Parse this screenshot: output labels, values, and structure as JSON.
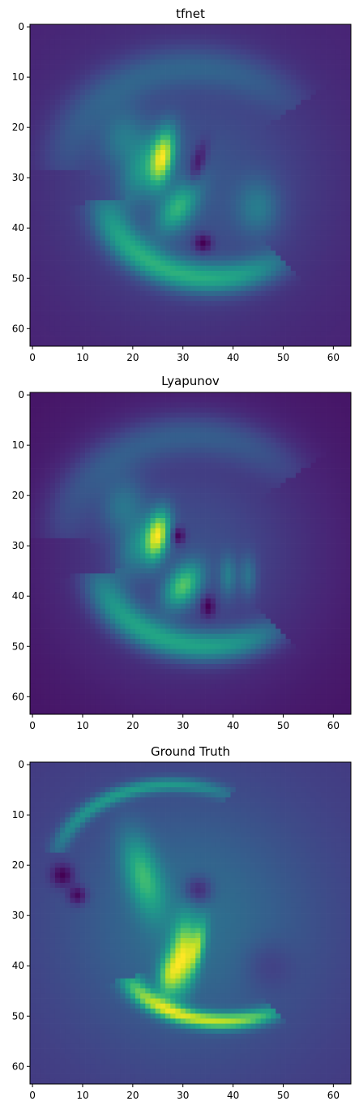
{
  "chart_data": [
    {
      "type": "heatmap",
      "title": "tfnet",
      "xticks": [
        0,
        10,
        20,
        30,
        40,
        50,
        60
      ],
      "yticks": [
        0,
        10,
        20,
        30,
        40,
        50,
        60
      ],
      "xlim": [
        -0.5,
        63.5
      ],
      "ylim": [
        63.5,
        -0.5
      ],
      "grid": false,
      "colormap": "viridis",
      "features": [
        {
          "x": 26,
          "y": 26,
          "sx": 1.6,
          "sy": 4.0,
          "rot": 0.2,
          "amp": 0.8
        },
        {
          "x": 22,
          "y": 28,
          "sx": 2.5,
          "sy": 5.0,
          "rot": 0.4,
          "amp": 0.35
        },
        {
          "x": 29,
          "y": 36,
          "sx": 2.2,
          "sy": 4.0,
          "rot": 0.6,
          "amp": 0.5
        },
        {
          "x": 18,
          "y": 22,
          "sx": 3.0,
          "sy": 4.0,
          "rot": 0.3,
          "amp": 0.25
        },
        {
          "x": 45,
          "y": 36,
          "sx": 3.0,
          "sy": 4.0,
          "rot": 0.0,
          "amp": 0.25
        },
        {
          "x": 34,
          "y": 43,
          "sx": 1.3,
          "sy": 1.3,
          "rot": 0.0,
          "amp": -0.3
        },
        {
          "x": 33,
          "y": 27,
          "sx": 1.0,
          "sy": 3.0,
          "rot": 0.3,
          "amp": -0.25
        }
      ],
      "arc": {
        "cx": 36,
        "cy": 32,
        "rx": 22,
        "ry": 18,
        "start": 0.9,
        "end": 3.0,
        "width": 2.2,
        "amp": 0.55
      },
      "outer_arc": {
        "cx": 32,
        "cy": 30,
        "rx": 26,
        "ry": 22,
        "start": 3.2,
        "end": 5.6,
        "width": 3.0,
        "amp": 0.2
      },
      "background": 0.18
    },
    {
      "type": "heatmap",
      "title": "Lyapunov",
      "xticks": [
        0,
        10,
        20,
        30,
        40,
        50,
        60
      ],
      "yticks": [
        0,
        10,
        20,
        30,
        40,
        50,
        60
      ],
      "xlim": [
        -0.5,
        63.5
      ],
      "ylim": [
        63.5,
        -0.5
      ],
      "grid": false,
      "colormap": "viridis",
      "features": [
        {
          "x": 25,
          "y": 28,
          "sx": 1.6,
          "sy": 3.5,
          "rot": 0.2,
          "amp": 0.8
        },
        {
          "x": 30,
          "y": 38,
          "sx": 2.2,
          "sy": 3.5,
          "rot": 0.6,
          "amp": 0.6
        },
        {
          "x": 21,
          "y": 30,
          "sx": 2.5,
          "sy": 4.5,
          "rot": 0.4,
          "amp": 0.3
        },
        {
          "x": 18,
          "y": 22,
          "sx": 3.0,
          "sy": 4.0,
          "rot": 0.3,
          "amp": 0.25
        },
        {
          "x": 39,
          "y": 36,
          "sx": 1.2,
          "sy": 3.0,
          "rot": 0.0,
          "amp": 0.25
        },
        {
          "x": 43,
          "y": 36,
          "sx": 1.2,
          "sy": 3.0,
          "rot": 0.0,
          "amp": 0.22
        },
        {
          "x": 29,
          "y": 28,
          "sx": 1.0,
          "sy": 1.2,
          "rot": 0.0,
          "amp": -0.3
        },
        {
          "x": 35,
          "y": 42,
          "sx": 1.0,
          "sy": 1.5,
          "rot": 0.0,
          "amp": -0.25
        }
      ],
      "arc": {
        "cx": 35,
        "cy": 33,
        "rx": 22,
        "ry": 17,
        "start": 0.9,
        "end": 3.0,
        "width": 2.2,
        "amp": 0.5
      },
      "outer_arc": {
        "cx": 32,
        "cy": 30,
        "rx": 26,
        "ry": 22,
        "start": 3.2,
        "end": 5.6,
        "width": 3.0,
        "amp": 0.2
      },
      "background": 0.18
    },
    {
      "type": "heatmap",
      "title": "Ground Truth",
      "xticks": [
        0,
        10,
        20,
        30,
        40,
        50,
        60
      ],
      "yticks": [
        0,
        10,
        20,
        30,
        40,
        50,
        60
      ],
      "xlim": [
        -0.5,
        63.5
      ],
      "ylim": [
        63.5,
        -0.5
      ],
      "grid": false,
      "colormap": "viridis",
      "features": [
        {
          "x": 30,
          "y": 38,
          "sx": 1.8,
          "sy": 5.0,
          "rot": 0.1,
          "amp": 0.65
        },
        {
          "x": 27,
          "y": 42,
          "sx": 1.5,
          "sy": 3.0,
          "rot": 0.1,
          "amp": 0.45
        },
        {
          "x": 22,
          "y": 22,
          "sx": 2.5,
          "sy": 6.0,
          "rot": -0.3,
          "amp": 0.4
        },
        {
          "x": 33,
          "y": 36,
          "sx": 1.0,
          "sy": 3.5,
          "rot": 0.2,
          "amp": 0.4
        },
        {
          "x": 6,
          "y": 22,
          "sx": 1.6,
          "sy": 1.6,
          "rot": 0.0,
          "amp": -0.25
        },
        {
          "x": 9,
          "y": 26,
          "sx": 1.3,
          "sy": 1.3,
          "rot": 0.0,
          "amp": -0.25
        },
        {
          "x": 33,
          "y": 25,
          "sx": 2.0,
          "sy": 2.0,
          "rot": 0.0,
          "amp": -0.25
        },
        {
          "x": 47,
          "y": 40,
          "sx": 3.5,
          "sy": 3.5,
          "rot": 0.0,
          "amp": -0.1
        }
      ],
      "arc": {
        "cx": 38,
        "cy": 38,
        "rx": 20,
        "ry": 13,
        "start": 1.0,
        "end": 2.8,
        "width": 1.2,
        "amp": 0.7
      },
      "outer_arc": {
        "cx": 28,
        "cy": 22,
        "rx": 24,
        "ry": 18,
        "start": 3.4,
        "end": 5.2,
        "width": 1.0,
        "amp": 0.35
      },
      "background": 0.18
    }
  ]
}
